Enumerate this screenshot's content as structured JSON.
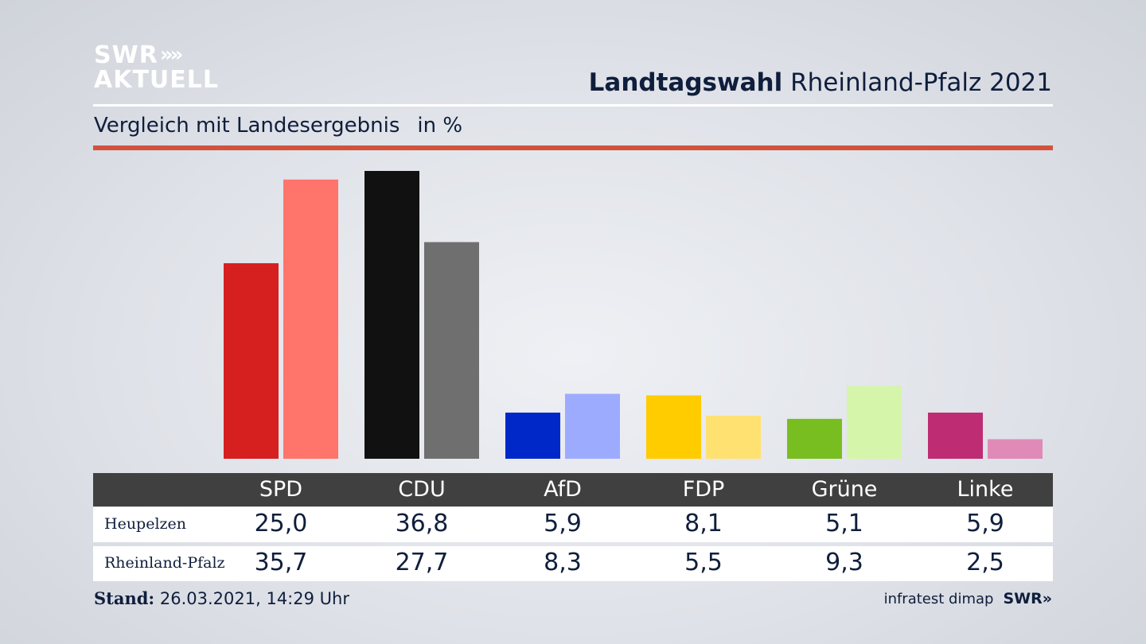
{
  "brand": {
    "logo_line1": "SWR",
    "logo_line2": "AKTUELL",
    "chevrons": "»",
    "footer_logo": "SWR»"
  },
  "header": {
    "title_bold": "Landtagswahl",
    "title_rest": "Rheinland-Pfalz 2021"
  },
  "subheader": {
    "text": "Vergleich mit Landesergebnis",
    "unit": "in %"
  },
  "colors": {
    "accent_rule": "#d2523c",
    "table_header": "#404040"
  },
  "chart_data": {
    "type": "bar",
    "categories": [
      "SPD",
      "CDU",
      "AfD",
      "FDP",
      "Grüne",
      "Linke"
    ],
    "series": [
      {
        "name": "Heupelzen",
        "values": [
          25.0,
          36.8,
          5.9,
          8.1,
          5.1,
          5.9
        ],
        "display": [
          "25,0",
          "36,8",
          "5,9",
          "8,1",
          "5,1",
          "5,9"
        ],
        "colors": [
          "#d61f1f",
          "#111111",
          "#0028c8",
          "#ffcc00",
          "#78be20",
          "#be2d73"
        ]
      },
      {
        "name": "Rheinland-Pfalz",
        "values": [
          35.7,
          27.7,
          8.3,
          5.5,
          9.3,
          2.5
        ],
        "display": [
          "35,7",
          "27,7",
          "8,3",
          "5,5",
          "9,3",
          "2,5"
        ],
        "colors": [
          "#ff746b",
          "#706f6f",
          "#9dabff",
          "#ffe172",
          "#d5f5aa",
          "#e08ab8"
        ]
      }
    ],
    "ylim": [
      0,
      36.8
    ]
  },
  "footer": {
    "stand_label": "Stand:",
    "stand_value": "26.03.2021, 14:29 Uhr",
    "source": "infratest dimap"
  }
}
